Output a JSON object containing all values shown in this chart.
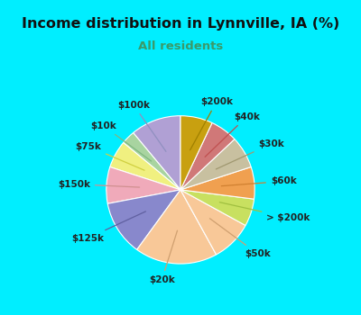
{
  "title": "Income distribution in Lynnville, IA (%)",
  "subtitle": "All residents",
  "title_color": "#111111",
  "subtitle_color": "#3a9a6a",
  "bg_color": "#00eeff",
  "chart_bg_top": "#e8f5ef",
  "chart_bg_bottom": "#d0eedd",
  "labels": [
    "$100k",
    "$10k",
    "$75k",
    "$150k",
    "$125k",
    "$20k",
    "$50k",
    "> $200k",
    "$60k",
    "$30k",
    "$40k",
    "$200k"
  ],
  "values": [
    11,
    3,
    6,
    8,
    12,
    18,
    9,
    6,
    7,
    7,
    6,
    7
  ],
  "colors": [
    "#b0a0d4",
    "#a8d4a0",
    "#f0f080",
    "#f0aaba",
    "#8888cc",
    "#f8c898",
    "#f8c898",
    "#c8e060",
    "#f0a050",
    "#c8c0a0",
    "#d07878",
    "#c8a010"
  ],
  "startangle": 90,
  "line_colors": [
    "#9090c0",
    "#80b880",
    "#d0d040",
    "#d09090",
    "#6060a0",
    "#d0a070",
    "#d0a070",
    "#a0c040",
    "#d08030",
    "#a09870",
    "#c05050",
    "#a08000"
  ]
}
